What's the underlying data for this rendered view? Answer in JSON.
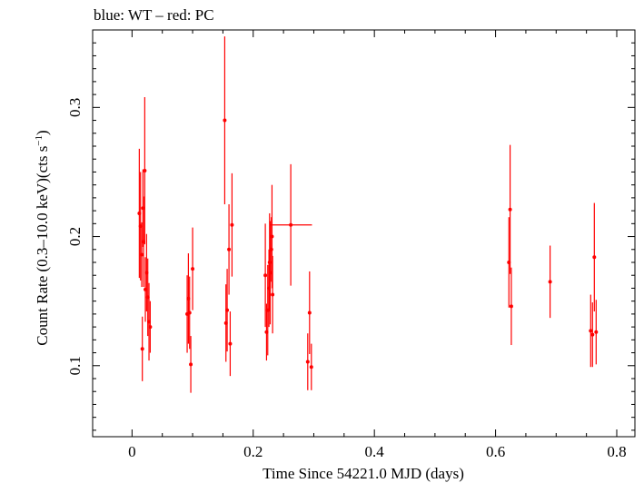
{
  "chart_data": {
    "type": "scatter",
    "title": "blue: WT – red: PC",
    "xlabel": "Time Since 54221.0 MJD (days)",
    "ylabel_main": "Count Rate (0.3–10.0 keV)(cts s",
    "ylabel_sup": "−1",
    "ylabel_close": ")",
    "xlim": [
      -0.065,
      0.83
    ],
    "ylim": [
      0.045,
      0.36
    ],
    "x_ticks": [
      0,
      0.2,
      0.4,
      0.6,
      0.8
    ],
    "x_tick_labels": [
      "0",
      "0.2",
      "0.4",
      "0.6",
      "0.8"
    ],
    "y_ticks": [
      0.1,
      0.2,
      0.3
    ],
    "y_tick_labels": [
      "0.1",
      "0.2",
      "0.3"
    ],
    "grid": false,
    "marker_color": "#ff0000",
    "series": [
      {
        "name": "PC",
        "color": "#ff0000",
        "points": [
          {
            "x": 0.012,
            "y": 0.218,
            "yerr": 0.05
          },
          {
            "x": 0.014,
            "y": 0.208,
            "yerr": 0.042
          },
          {
            "x": 0.016,
            "y": 0.186,
            "yerr": 0.025
          },
          {
            "x": 0.017,
            "y": 0.113,
            "yerr": 0.025
          },
          {
            "x": 0.018,
            "y": 0.222,
            "yerr": 0.03
          },
          {
            "x": 0.019,
            "y": 0.196,
            "yerr": 0.035
          },
          {
            "x": 0.021,
            "y": 0.251,
            "yerr": 0.057
          },
          {
            "x": 0.022,
            "y": 0.159,
            "yerr": 0.025
          },
          {
            "x": 0.024,
            "y": 0.172,
            "yerr": 0.03
          },
          {
            "x": 0.026,
            "y": 0.153,
            "yerr": 0.03
          },
          {
            "x": 0.028,
            "y": 0.134,
            "yerr": 0.03
          },
          {
            "x": 0.03,
            "y": 0.13,
            "yerr": 0.02
          },
          {
            "x": 0.091,
            "y": 0.14,
            "yerr": 0.03
          },
          {
            "x": 0.093,
            "y": 0.152,
            "yerr": 0.035
          },
          {
            "x": 0.095,
            "y": 0.141,
            "yerr": 0.028
          },
          {
            "x": 0.097,
            "y": 0.101,
            "yerr": 0.022
          },
          {
            "x": 0.1,
            "y": 0.175,
            "yerr": 0.032
          },
          {
            "x": 0.153,
            "y": 0.29,
            "yerr": 0.065
          },
          {
            "x": 0.155,
            "y": 0.133,
            "yerr": 0.03
          },
          {
            "x": 0.157,
            "y": 0.143,
            "yerr": 0.032
          },
          {
            "x": 0.16,
            "y": 0.19,
            "yerr": 0.035
          },
          {
            "x": 0.162,
            "y": 0.117,
            "yerr": 0.025
          },
          {
            "x": 0.165,
            "y": 0.209,
            "yerr": 0.04
          },
          {
            "x": 0.22,
            "y": 0.17,
            "yerr": 0.04
          },
          {
            "x": 0.222,
            "y": 0.126,
            "yerr": 0.022
          },
          {
            "x": 0.224,
            "y": 0.143,
            "yerr": 0.035
          },
          {
            "x": 0.226,
            "y": 0.16,
            "yerr": 0.03
          },
          {
            "x": 0.227,
            "y": 0.18,
            "yerr": 0.038
          },
          {
            "x": 0.228,
            "y": 0.172,
            "yerr": 0.04
          },
          {
            "x": 0.23,
            "y": 0.19,
            "yerr": 0.025
          },
          {
            "x": 0.231,
            "y": 0.2,
            "yerr": 0.04
          },
          {
            "x": 0.232,
            "y": 0.155,
            "yerr": 0.03
          },
          {
            "x": 0.262,
            "y": 0.209,
            "yerr": 0.047,
            "xerr": 0.035
          },
          {
            "x": 0.29,
            "y": 0.103,
            "yerr": 0.022
          },
          {
            "x": 0.293,
            "y": 0.141,
            "yerr": 0.032
          },
          {
            "x": 0.296,
            "y": 0.099,
            "yerr": 0.018
          },
          {
            "x": 0.622,
            "y": 0.18,
            "yerr": 0.035
          },
          {
            "x": 0.624,
            "y": 0.221,
            "yerr": 0.05
          },
          {
            "x": 0.626,
            "y": 0.146,
            "yerr": 0.03
          },
          {
            "x": 0.69,
            "y": 0.165,
            "yerr": 0.028
          },
          {
            "x": 0.757,
            "y": 0.127,
            "yerr": 0.028
          },
          {
            "x": 0.76,
            "y": 0.124,
            "yerr": 0.025
          },
          {
            "x": 0.763,
            "y": 0.184,
            "yerr": 0.042
          },
          {
            "x": 0.766,
            "y": 0.126,
            "yerr": 0.025
          }
        ]
      }
    ]
  }
}
